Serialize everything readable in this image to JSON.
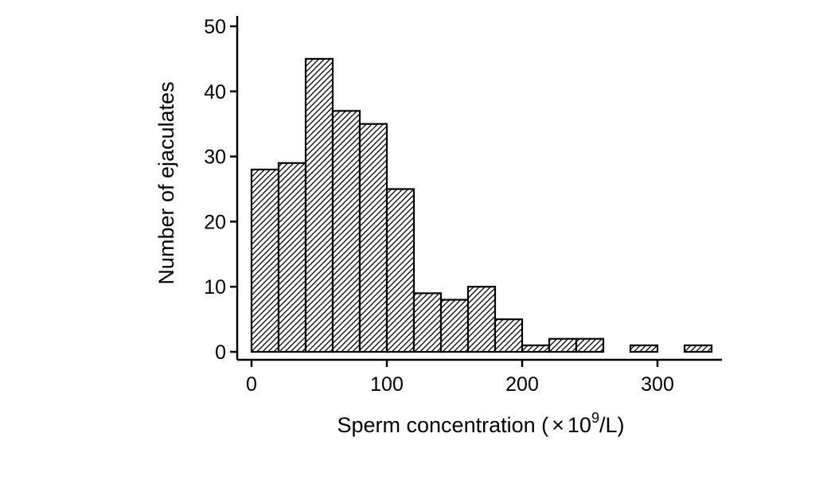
{
  "chart_data": {
    "type": "bar",
    "subtype": "histogram",
    "bin_width": 20,
    "bins": [
      {
        "x_start": 0,
        "x_end": 20,
        "value": 28
      },
      {
        "x_start": 20,
        "x_end": 40,
        "value": 29
      },
      {
        "x_start": 40,
        "x_end": 60,
        "value": 45
      },
      {
        "x_start": 60,
        "x_end": 80,
        "value": 37
      },
      {
        "x_start": 80,
        "x_end": 100,
        "value": 35
      },
      {
        "x_start": 100,
        "x_end": 120,
        "value": 25
      },
      {
        "x_start": 120,
        "x_end": 140,
        "value": 9
      },
      {
        "x_start": 140,
        "x_end": 160,
        "value": 8
      },
      {
        "x_start": 160,
        "x_end": 180,
        "value": 10
      },
      {
        "x_start": 180,
        "x_end": 200,
        "value": 5
      },
      {
        "x_start": 200,
        "x_end": 220,
        "value": 1
      },
      {
        "x_start": 220,
        "x_end": 240,
        "value": 2
      },
      {
        "x_start": 240,
        "x_end": 260,
        "value": 2
      },
      {
        "x_start": 260,
        "x_end": 280,
        "value": 0
      },
      {
        "x_start": 280,
        "x_end": 300,
        "value": 1
      },
      {
        "x_start": 300,
        "x_end": 320,
        "value": 0
      },
      {
        "x_start": 320,
        "x_end": 340,
        "value": 1
      }
    ],
    "title": "",
    "xlabel": "Sperm concentration (",
    "xlabel_tail": "/L)",
    "xlabel_times": "×",
    "xlabel_base": "10",
    "xlabel_exp": "9",
    "ylabel": "Number of ejaculates",
    "xlim": [
      -8,
      345
    ],
    "ylim": [
      -1.5,
      52
    ],
    "xticks": [
      0,
      100,
      200,
      300
    ],
    "yticks": [
      0,
      10,
      20,
      30,
      40,
      50
    ],
    "grid": false,
    "legend": "none",
    "bar_fill": "hatched",
    "colors": {
      "bar_stroke": "#000000",
      "hatch": "#000000",
      "background": "#ffffff"
    }
  }
}
